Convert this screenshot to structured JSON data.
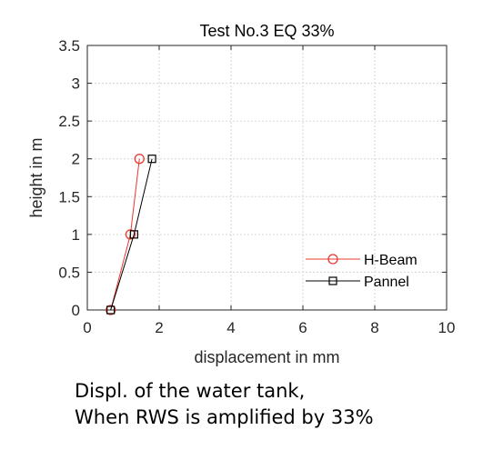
{
  "chart_data": {
    "type": "line",
    "title": "Test No.3 EQ 33%",
    "xlabel": "displacement in mm",
    "ylabel": "height in m",
    "xlim": [
      0,
      10
    ],
    "ylim": [
      0,
      3.5
    ],
    "xticks": [
      0,
      2,
      4,
      6,
      8,
      10
    ],
    "xtick_labels": [
      "0",
      "2",
      "4",
      "6",
      "8",
      "10"
    ],
    "yticks": [
      0,
      0.5,
      1,
      1.5,
      2,
      2.5,
      3,
      3.5
    ],
    "ytick_labels": [
      "0",
      "0.5",
      "1",
      "1.5",
      "2",
      "2.5",
      "3",
      "3.5"
    ],
    "grid": true,
    "legend_position": "bottom-right",
    "series": [
      {
        "name": "H-Beam",
        "color": "#e8392c",
        "marker": "circle",
        "x": [
          0.65,
          1.2,
          1.45
        ],
        "y": [
          0,
          1,
          2
        ]
      },
      {
        "name": "Pannel",
        "color": "#000000",
        "marker": "square",
        "x": [
          0.65,
          1.3,
          1.8
        ],
        "y": [
          0,
          1,
          2
        ]
      }
    ]
  },
  "caption": {
    "line1": "Displ. of the water tank,",
    "line2": "When RWS is amplified by 33%"
  }
}
